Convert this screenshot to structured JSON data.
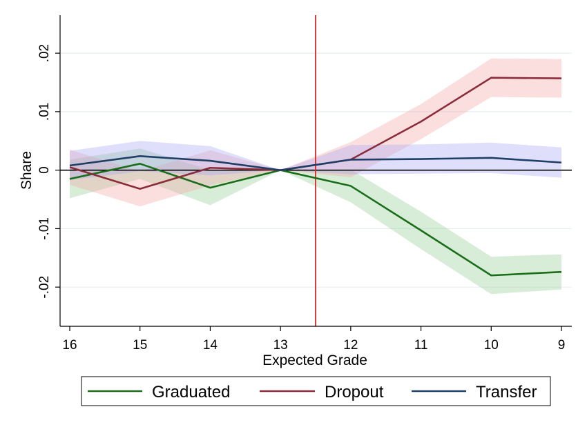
{
  "chart_data": {
    "type": "line",
    "xlabel": "Expected Grade",
    "ylabel": "Share",
    "x": [
      16,
      15,
      14,
      13,
      12,
      11,
      10,
      9
    ],
    "x_tick_labels": [
      "16",
      "15",
      "14",
      "13",
      "12",
      "11",
      "10",
      "9"
    ],
    "x_reversed": true,
    "ylim": [
      -0.0267,
      0.0265
    ],
    "y_ticks": [
      -0.02,
      -0.01,
      0,
      0.01,
      0.02
    ],
    "y_tick_labels": [
      "-.02",
      "-.01",
      "0",
      ".01",
      ".02"
    ],
    "grid": true,
    "legend_position": "bottom",
    "reference_line_x": 12.5,
    "reference_line_color": "#d62728",
    "series": [
      {
        "name": "Graduated",
        "color": "#1a6e1a",
        "band_color": "#8fcc8f",
        "values": [
          -0.0015,
          0.0011,
          -0.003,
          0.0,
          -0.0027,
          -0.0103,
          -0.018,
          -0.0174
        ],
        "ci_low": [
          -0.0048,
          -0.0015,
          -0.006,
          0.0,
          -0.0055,
          -0.0135,
          -0.0212,
          -0.0204
        ],
        "ci_high": [
          0.0018,
          0.0037,
          0.0,
          0.0,
          0.0001,
          -0.0071,
          -0.0148,
          -0.0144
        ]
      },
      {
        "name": "Dropout",
        "color": "#8b2c3a",
        "band_color": "#f4a3a3",
        "values": [
          0.0005,
          -0.0032,
          0.0004,
          0.0,
          0.0018,
          0.0083,
          0.0158,
          0.0157
        ],
        "ci_low": [
          -0.0025,
          -0.0062,
          -0.0026,
          0.0,
          -0.0012,
          0.0053,
          0.0125,
          0.0124
        ],
        "ci_high": [
          0.0035,
          -0.0002,
          0.0034,
          0.0,
          0.0048,
          0.0113,
          0.0191,
          0.019
        ]
      },
      {
        "name": "Transfer",
        "color": "#1f3f66",
        "band_color": "#a3a3f4",
        "values": [
          0.0008,
          0.0024,
          0.0016,
          0.0,
          0.0018,
          0.0019,
          0.0021,
          0.0013
        ],
        "ci_low": [
          -0.0017,
          -0.0002,
          -0.0009,
          0.0,
          -0.0007,
          -0.0006,
          -0.0005,
          -0.0013
        ],
        "ci_high": [
          0.0033,
          0.005,
          0.0041,
          0.0,
          0.0043,
          0.0044,
          0.0047,
          0.0039
        ]
      }
    ]
  }
}
